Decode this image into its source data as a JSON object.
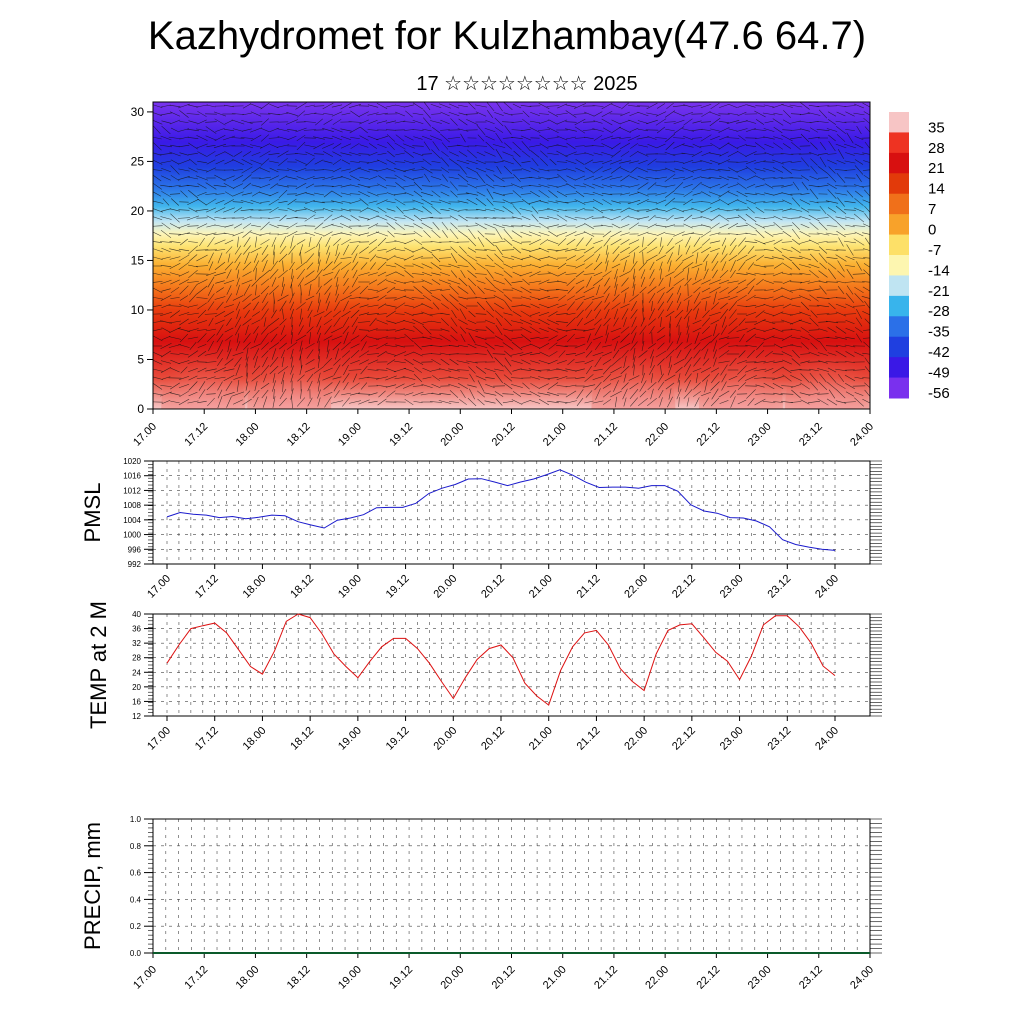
{
  "header": {
    "title": "Kazhydromet for Kulzhambay(47.6 64.7)",
    "subtitle": "17 ☆☆☆☆☆☆☆☆ 2025"
  },
  "colors": {
    "pmsl_line": "#1a1acc",
    "temp_line": "#dd1111",
    "precip_line": "#0a5a2a",
    "axis": "#000000"
  },
  "time_ticks": [
    "17.00",
    "17.12",
    "18.00",
    "18.12",
    "19.00",
    "19.12",
    "20.00",
    "20.12",
    "21.00",
    "21.12",
    "22.00",
    "22.12",
    "23.00",
    "23.12",
    "24.00"
  ],
  "chart_data": [
    {
      "type": "heatmap",
      "name": "temperature-wind-cross-section",
      "title": "",
      "xlabel": "",
      "ylabel": "",
      "yticks": [
        0,
        5,
        10,
        15,
        20,
        25,
        30
      ],
      "ylim": [
        0,
        31
      ],
      "xticks": [
        "17.00",
        "17.12",
        "18.00",
        "18.12",
        "19.00",
        "19.12",
        "20.00",
        "20.12",
        "21.00",
        "21.12",
        "22.00",
        "22.12",
        "23.00",
        "23.12",
        "24.00"
      ],
      "colorbar_labels": [
        "35",
        "28",
        "21",
        "14",
        "7",
        "0",
        "-7",
        "-14",
        "-21",
        "-28",
        "-35",
        "-42",
        "-49",
        "-56"
      ],
      "colorbar_colors": [
        "#f7c5c5",
        "#ee3322",
        "#d81010",
        "#e23a0a",
        "#f0701a",
        "#f8a22a",
        "#fde068",
        "#fdf6b0",
        "#bfe4f2",
        "#38b4ec",
        "#2b70e8",
        "#1f3fe0",
        "#3a18e6",
        "#7a30ee"
      ],
      "wind_barbs": true
    },
    {
      "type": "line",
      "name": "PMSL",
      "ylabel": "PMSL",
      "ylim": [
        992,
        1020
      ],
      "yticks": [
        992,
        996,
        1000,
        1004,
        1008,
        1012,
        1016,
        1020
      ],
      "xticks": [
        "17.00",
        "17.12",
        "18.00",
        "18.12",
        "19.00",
        "19.12",
        "20.00",
        "20.12",
        "21.00",
        "21.12",
        "22.00",
        "22.12",
        "23.00",
        "23.12",
        "24.00"
      ],
      "grid": true,
      "series": [
        {
          "values": [
            1004.8,
            1006.0,
            1005.5,
            1005.3,
            1004.6,
            1004.9,
            1004.3,
            1004.7,
            1005.3,
            1005.1,
            1003.5,
            1002.6,
            1001.8,
            1003.9,
            1004.5,
            1005.4,
            1007.3,
            1007.4,
            1007.4,
            1008.5,
            1011.2,
            1012.6,
            1013.6,
            1015.1,
            1015.2,
            1014.3,
            1013.3,
            1014.3,
            1015.1,
            1016.3,
            1017.6,
            1016.1,
            1014.2,
            1012.8,
            1012.9,
            1012.9,
            1012.6,
            1013.3,
            1013.3,
            1011.8,
            1008.1,
            1006.4,
            1005.8,
            1004.6,
            1004.5,
            1003.7,
            1002.1,
            998.6,
            997.3,
            996.6,
            996.0,
            995.7
          ]
        }
      ]
    },
    {
      "type": "line",
      "name": "TEMP at 2 M",
      "ylabel": "TEMP at 2 M",
      "ylim": [
        12,
        40
      ],
      "yticks": [
        12,
        16,
        20,
        24,
        28,
        32,
        36,
        40
      ],
      "xticks": [
        "17.00",
        "17.12",
        "18.00",
        "18.12",
        "19.00",
        "19.12",
        "20.00",
        "20.12",
        "21.00",
        "21.12",
        "22.00",
        "22.12",
        "23.00",
        "23.12",
        "24.00"
      ],
      "grid": true,
      "series": [
        {
          "values": [
            26.5,
            31.5,
            36.0,
            36.8,
            37.5,
            34.8,
            30.2,
            25.6,
            23.5,
            29.8,
            38.0,
            40.0,
            39.0,
            34.5,
            29.0,
            25.6,
            22.5,
            27.0,
            31.0,
            33.3,
            33.3,
            30.5,
            26.5,
            21.5,
            16.8,
            22.5,
            27.5,
            30.5,
            31.5,
            28.0,
            21.0,
            17.5,
            15.0,
            24.5,
            31.0,
            34.8,
            35.5,
            31.5,
            25.0,
            21.5,
            19.0,
            29.0,
            35.5,
            37.0,
            37.3,
            33.5,
            29.5,
            27.0,
            22.0,
            28.5,
            37.0,
            39.5,
            39.5,
            36.5,
            32.0,
            25.7,
            23.1
          ]
        }
      ]
    },
    {
      "type": "line",
      "name": "PRECIP",
      "ylabel": "PRECIP, mm",
      "ylim": [
        0.0,
        1.0
      ],
      "yticks": [
        "0.0",
        "0.2",
        "0.4",
        "0.6",
        "0.8",
        "1.0"
      ],
      "xticks": [
        "17.00",
        "17.12",
        "18.00",
        "18.12",
        "19.00",
        "19.12",
        "20.00",
        "20.12",
        "21.00",
        "21.12",
        "22.00",
        "22.12",
        "23.00",
        "23.12",
        "24.00"
      ],
      "grid": true,
      "series": [
        {
          "values": [
            0,
            0,
            0,
            0,
            0,
            0,
            0,
            0,
            0,
            0,
            0,
            0,
            0,
            0,
            0,
            0,
            0,
            0,
            0,
            0,
            0,
            0,
            0,
            0,
            0,
            0,
            0,
            0,
            0,
            0,
            0,
            0,
            0,
            0,
            0,
            0,
            0,
            0,
            0,
            0,
            0,
            0,
            0,
            0,
            0,
            0,
            0,
            0,
            0,
            0,
            0,
            0,
            0,
            0,
            0,
            0,
            0,
            0,
            0,
            0,
            0,
            0,
            0,
            0,
            0,
            0,
            0,
            0,
            0,
            0,
            0,
            0,
            0,
            0,
            0,
            0,
            0,
            0,
            0,
            0,
            0,
            0,
            0,
            0,
            0,
            0
          ]
        }
      ]
    }
  ]
}
